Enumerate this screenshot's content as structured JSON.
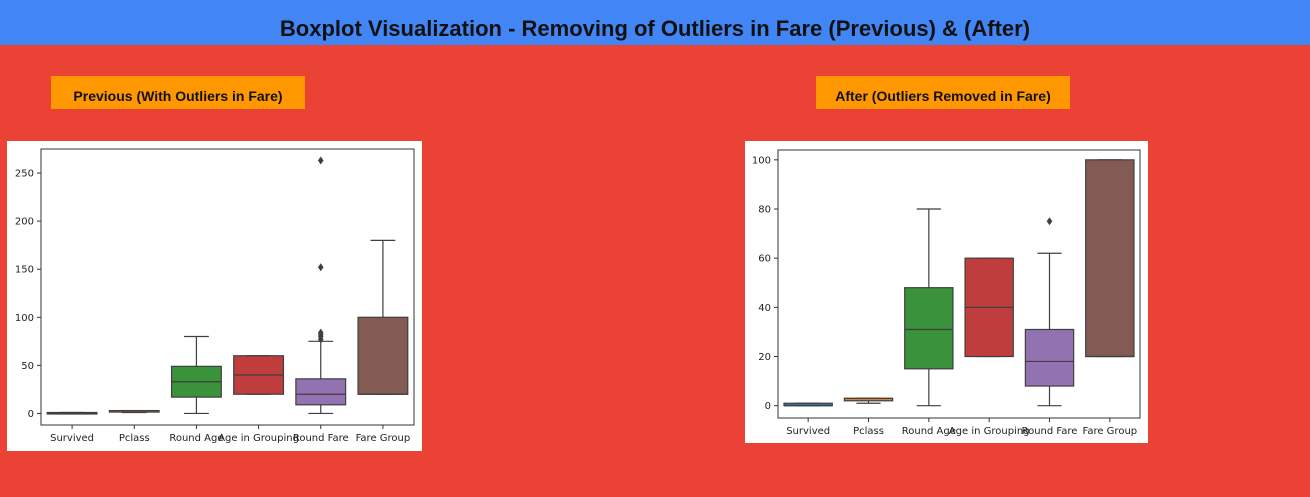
{
  "header": {
    "title": "Boxplot Visualization - Removing of Outliers in Fare (Previous) & (After)"
  },
  "panels": {
    "left_label": "Previous (With Outliers in Fare)",
    "right_label": "After (Outliers Removed in Fare)"
  },
  "chart_data": [
    {
      "type": "boxplot",
      "categories": [
        "Survived",
        "Pclass",
        "Round Age",
        "Age in Grouping",
        "Round Fare",
        "Fare Group"
      ],
      "ylim": [
        -12,
        275
      ],
      "yticks": [
        0,
        50,
        100,
        150,
        200,
        250
      ],
      "colors": [
        "#3274A1",
        "#E1812C",
        "#3A923A",
        "#C03D3E",
        "#9372B2",
        "#845B53"
      ],
      "boxes": [
        {
          "whisker_low": 0,
          "q1": 0,
          "median": 0,
          "q3": 1,
          "whisker_high": 1,
          "outliers": []
        },
        {
          "whisker_low": 1,
          "q1": 2,
          "median": 3,
          "q3": 3,
          "whisker_high": 3,
          "outliers": []
        },
        {
          "whisker_low": 0,
          "q1": 17,
          "median": 33,
          "q3": 49,
          "whisker_high": 80,
          "outliers": []
        },
        {
          "whisker_low": 20,
          "q1": 20,
          "median": 40,
          "q3": 60,
          "whisker_high": 60,
          "outliers": []
        },
        {
          "whisker_low": 0,
          "q1": 9,
          "median": 20,
          "q3": 36,
          "whisker_high": 75,
          "outliers": [
            77,
            80,
            82,
            84,
            152,
            263
          ]
        },
        {
          "whisker_low": 20,
          "q1": 20,
          "median": 20,
          "q3": 100,
          "whisker_high": 180,
          "outliers": []
        }
      ]
    },
    {
      "type": "boxplot",
      "categories": [
        "Survived",
        "Pclass",
        "Round Age",
        "Age in Grouping",
        "Round Fare",
        "Fare Group"
      ],
      "ylim": [
        -5,
        104
      ],
      "yticks": [
        0,
        20,
        40,
        60,
        80,
        100
      ],
      "colors": [
        "#3274A1",
        "#E1812C",
        "#3A923A",
        "#C03D3E",
        "#9372B2",
        "#845B53"
      ],
      "boxes": [
        {
          "whisker_low": 0,
          "q1": 0,
          "median": 0,
          "q3": 1,
          "whisker_high": 1,
          "outliers": []
        },
        {
          "whisker_low": 1,
          "q1": 2,
          "median": 3,
          "q3": 3,
          "whisker_high": 3,
          "outliers": []
        },
        {
          "whisker_low": 0,
          "q1": 15,
          "median": 31,
          "q3": 48,
          "whisker_high": 80,
          "outliers": []
        },
        {
          "whisker_low": 20,
          "q1": 20,
          "median": 40,
          "q3": 60,
          "whisker_high": 60,
          "outliers": []
        },
        {
          "whisker_low": 0,
          "q1": 8,
          "median": 18,
          "q3": 31,
          "whisker_high": 62,
          "outliers": [
            75
          ]
        },
        {
          "whisker_low": 20,
          "q1": 20,
          "median": 20,
          "q3": 100,
          "whisker_high": 100,
          "outliers": []
        }
      ]
    }
  ]
}
